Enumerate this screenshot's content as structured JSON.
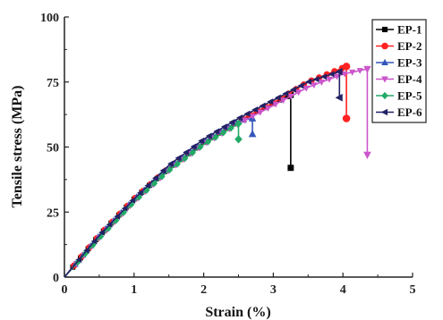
{
  "chart_data": {
    "type": "line",
    "xlabel": "Strain (%)",
    "ylabel": "Tensile stress (MPa)",
    "xlim": [
      0,
      5
    ],
    "ylim": [
      0,
      100
    ],
    "xticks": [
      "0",
      "1",
      "2",
      "3",
      "4",
      "5"
    ],
    "yticks": [
      "0",
      "25",
      "50",
      "75",
      "100"
    ],
    "grid": false,
    "legend_position": "top-right",
    "series": [
      {
        "name": "EP-1",
        "color": "#000000",
        "marker": "square",
        "x": [
          0,
          0.5,
          1.0,
          1.5,
          2.0,
          2.5,
          3.0,
          3.25
        ],
        "y": [
          0,
          16,
          30,
          42,
          52,
          60,
          67,
          70
        ],
        "failure": {
          "x": 3.25,
          "y": 42
        }
      },
      {
        "name": "EP-2",
        "color": "#ff2222",
        "marker": "circle",
        "x": [
          0,
          0.5,
          1.0,
          1.5,
          2.0,
          2.5,
          3.0,
          3.5,
          4.05
        ],
        "y": [
          0,
          16,
          30,
          42,
          52,
          60,
          67,
          75,
          81
        ],
        "failure": {
          "x": 4.05,
          "y": 61
        }
      },
      {
        "name": "EP-3",
        "color": "#3355bb",
        "marker": "triangle-up",
        "x": [
          0,
          0.5,
          1.0,
          1.5,
          2.0,
          2.5,
          2.7
        ],
        "y": [
          0,
          16,
          30,
          42,
          52,
          60,
          61
        ],
        "failure": {
          "x": 2.7,
          "y": 55
        }
      },
      {
        "name": "EP-4",
        "color": "#cc55cc",
        "marker": "triangle-down",
        "x": [
          0,
          0.5,
          1.0,
          1.5,
          2.0,
          2.5,
          3.0,
          3.5,
          4.0,
          4.35
        ],
        "y": [
          0,
          15,
          29,
          41,
          51,
          59,
          66,
          73,
          78,
          80
        ],
        "failure": {
          "x": 4.35,
          "y": 47
        }
      },
      {
        "name": "EP-5",
        "color": "#22aa66",
        "marker": "diamond",
        "x": [
          0,
          0.5,
          1.0,
          1.5,
          2.0,
          2.5
        ],
        "y": [
          0,
          15,
          29,
          41,
          51,
          59
        ],
        "failure": {
          "x": 2.5,
          "y": 53
        }
      },
      {
        "name": "EP-6",
        "color": "#222266",
        "marker": "triangle-left",
        "x": [
          0,
          0.5,
          1.0,
          1.5,
          2.0,
          2.5,
          3.0,
          3.5,
          3.95
        ],
        "y": [
          0,
          16,
          30,
          43,
          53,
          61,
          68,
          75,
          79
        ],
        "failure": {
          "x": 3.95,
          "y": 69
        }
      }
    ]
  }
}
